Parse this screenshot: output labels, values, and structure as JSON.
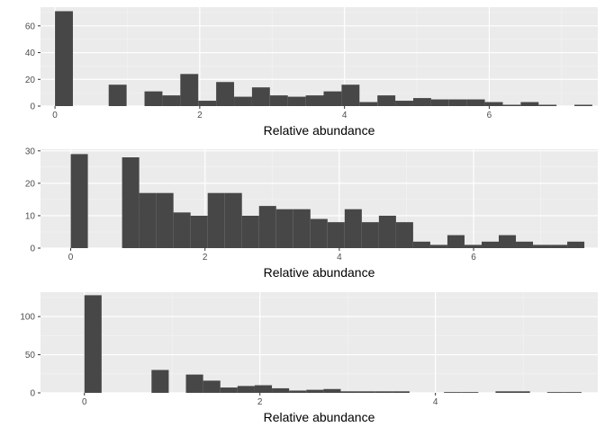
{
  "colors": {
    "panel": "#EBEBEB",
    "grid_major": "#FFFFFF",
    "grid_minor": "#F4F4F4",
    "bar": "#474747",
    "tick_text": "#4D4D4D",
    "tick_mark": "#333333",
    "label_text": "#000000"
  },
  "chart_data": [
    {
      "type": "bar",
      "xlabel": "Relative abundance",
      "ylabel": "",
      "grid": true,
      "xlim": [
        -0.2,
        7.5
      ],
      "ylim": [
        0,
        74
      ],
      "x_ticks": [
        0,
        2,
        4,
        6
      ],
      "x_tick_labels": [
        "0",
        "2",
        "4",
        "6"
      ],
      "y_ticks": [
        0,
        20,
        40,
        60
      ],
      "y_tick_labels": [
        "0",
        "20",
        "40",
        "60"
      ],
      "bin_width": 0.2475,
      "bins": [
        {
          "x": 0.0,
          "count": 71
        },
        {
          "x": 0.742,
          "count": 16
        },
        {
          "x": 1.237,
          "count": 11
        },
        {
          "x": 1.485,
          "count": 8
        },
        {
          "x": 1.732,
          "count": 24
        },
        {
          "x": 1.98,
          "count": 4
        },
        {
          "x": 2.227,
          "count": 18
        },
        {
          "x": 2.475,
          "count": 7
        },
        {
          "x": 2.722,
          "count": 14
        },
        {
          "x": 2.97,
          "count": 8
        },
        {
          "x": 3.217,
          "count": 7
        },
        {
          "x": 3.465,
          "count": 8
        },
        {
          "x": 3.712,
          "count": 11
        },
        {
          "x": 3.96,
          "count": 16
        },
        {
          "x": 4.207,
          "count": 3
        },
        {
          "x": 4.455,
          "count": 8
        },
        {
          "x": 4.702,
          "count": 4
        },
        {
          "x": 4.95,
          "count": 6
        },
        {
          "x": 5.197,
          "count": 5
        },
        {
          "x": 5.445,
          "count": 5
        },
        {
          "x": 5.692,
          "count": 5
        },
        {
          "x": 5.94,
          "count": 3
        },
        {
          "x": 6.187,
          "count": 1
        },
        {
          "x": 6.435,
          "count": 3
        },
        {
          "x": 6.682,
          "count": 1
        },
        {
          "x": 7.177,
          "count": 1
        }
      ]
    },
    {
      "type": "bar",
      "xlabel": "Relative abundance",
      "ylabel": "",
      "grid": true,
      "xlim": [
        -0.45,
        7.85
      ],
      "ylim": [
        0,
        30.5
      ],
      "x_ticks": [
        0,
        2,
        4,
        6
      ],
      "x_tick_labels": [
        "0",
        "2",
        "4",
        "6"
      ],
      "y_ticks": [
        0,
        10,
        20,
        30
      ],
      "y_tick_labels": [
        "0",
        "10",
        "20",
        "30"
      ],
      "bin_width": 0.255,
      "bins": [
        {
          "x": 0.0,
          "count": 29
        },
        {
          "x": 0.765,
          "count": 28
        },
        {
          "x": 1.02,
          "count": 17
        },
        {
          "x": 1.275,
          "count": 17
        },
        {
          "x": 1.53,
          "count": 11
        },
        {
          "x": 1.785,
          "count": 10
        },
        {
          "x": 2.04,
          "count": 17
        },
        {
          "x": 2.295,
          "count": 17
        },
        {
          "x": 2.55,
          "count": 10
        },
        {
          "x": 2.805,
          "count": 13
        },
        {
          "x": 3.06,
          "count": 12
        },
        {
          "x": 3.315,
          "count": 12
        },
        {
          "x": 3.57,
          "count": 9
        },
        {
          "x": 3.825,
          "count": 8
        },
        {
          "x": 4.08,
          "count": 12
        },
        {
          "x": 4.335,
          "count": 8
        },
        {
          "x": 4.59,
          "count": 10
        },
        {
          "x": 4.845,
          "count": 8
        },
        {
          "x": 5.1,
          "count": 2
        },
        {
          "x": 5.355,
          "count": 1
        },
        {
          "x": 5.61,
          "count": 4
        },
        {
          "x": 5.865,
          "count": 1
        },
        {
          "x": 6.12,
          "count": 2
        },
        {
          "x": 6.375,
          "count": 4
        },
        {
          "x": 6.63,
          "count": 2
        },
        {
          "x": 6.885,
          "count": 1
        },
        {
          "x": 7.14,
          "count": 1
        },
        {
          "x": 7.395,
          "count": 2
        }
      ]
    },
    {
      "type": "bar",
      "xlabel": "Relative abundance",
      "ylabel": "",
      "grid": true,
      "xlim": [
        -0.5,
        5.85
      ],
      "ylim": [
        0,
        132
      ],
      "x_ticks": [
        0,
        2,
        4
      ],
      "x_tick_labels": [
        "0",
        "2",
        "4"
      ],
      "y_ticks": [
        0,
        50,
        100
      ],
      "y_tick_labels": [
        "0",
        "50",
        "100"
      ],
      "bin_width": 0.196,
      "bins": [
        {
          "x": 0.0,
          "count": 128
        },
        {
          "x": 0.765,
          "count": 30
        },
        {
          "x": 1.157,
          "count": 24
        },
        {
          "x": 1.353,
          "count": 16
        },
        {
          "x": 1.549,
          "count": 7
        },
        {
          "x": 1.745,
          "count": 9
        },
        {
          "x": 1.941,
          "count": 10
        },
        {
          "x": 2.137,
          "count": 6
        },
        {
          "x": 2.333,
          "count": 3
        },
        {
          "x": 2.529,
          "count": 4
        },
        {
          "x": 2.725,
          "count": 5
        },
        {
          "x": 2.921,
          "count": 2
        },
        {
          "x": 3.117,
          "count": 2
        },
        {
          "x": 3.313,
          "count": 2
        },
        {
          "x": 3.509,
          "count": 2
        },
        {
          "x": 4.097,
          "count": 1
        },
        {
          "x": 4.293,
          "count": 1
        },
        {
          "x": 4.685,
          "count": 2
        },
        {
          "x": 4.881,
          "count": 2
        },
        {
          "x": 5.273,
          "count": 1
        },
        {
          "x": 5.469,
          "count": 1
        }
      ]
    }
  ]
}
